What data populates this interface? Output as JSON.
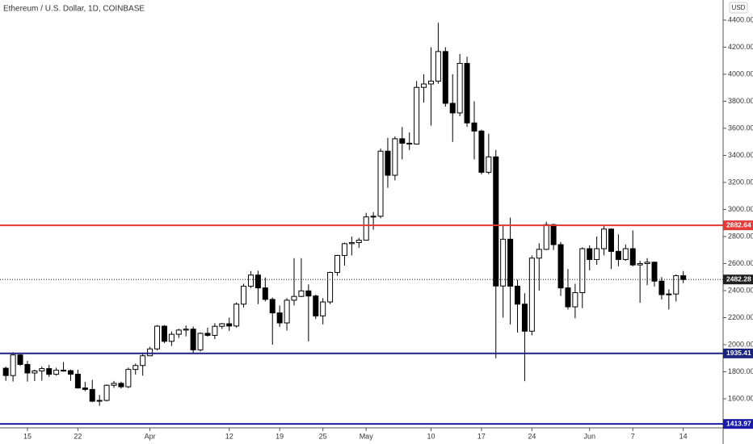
{
  "chart_data": {
    "type": "candlestick",
    "title": "Ethereum / U.S. Dollar, 1D, COINBASE",
    "currency": "USD",
    "categories": [
      null,
      null,
      null,
      "15",
      null,
      null,
      null,
      null,
      null,
      null,
      "22",
      null,
      null,
      null,
      null,
      null,
      null,
      null,
      null,
      null,
      "Apr",
      null,
      null,
      null,
      null,
      null,
      null,
      null,
      null,
      null,
      null,
      "12",
      null,
      null,
      null,
      null,
      null,
      null,
      "19",
      null,
      null,
      null,
      null,
      null,
      "25",
      null,
      null,
      null,
      null,
      null,
      "May",
      null,
      null,
      null,
      null,
      null,
      null,
      null,
      null,
      "10",
      null,
      null,
      null,
      null,
      null,
      null,
      "17",
      null,
      null,
      null,
      null,
      null,
      null,
      "24",
      null,
      null,
      null,
      null,
      null,
      null,
      null,
      "Jun",
      null,
      null,
      null,
      null,
      null,
      "7",
      null,
      null,
      null,
      null,
      null,
      null,
      "14"
    ],
    "open": [
      1826,
      1772,
      1924,
      1854,
      1791,
      1806,
      1823,
      1781,
      1811,
      1808,
      1782,
      1680,
      1669,
      1582,
      1588,
      1700,
      1714,
      1689,
      1817,
      1846,
      1918,
      1969,
      2137,
      2025,
      2077,
      2108,
      2115,
      1962,
      2084,
      2069,
      2136,
      2155,
      2138,
      2300,
      2432,
      2515,
      2420,
      2335,
      2235,
      2161,
      2329,
      2357,
      2398,
      2360,
      2213,
      2316,
      2534,
      2660,
      2747,
      2755,
      2773,
      2945,
      2950,
      3431,
      3253,
      3523,
      3490,
      3484,
      3903,
      3928,
      3949,
      4168,
      3785,
      3714,
      4080,
      3640,
      3580,
      3275,
      3389,
      2434,
      2780,
      2433,
      2300,
      2100,
      2640,
      2705,
      2888,
      2740,
      2420,
      2280,
      2385,
      2710,
      2630,
      2710,
      2855,
      2690,
      2630,
      2710,
      2590,
      2600,
      2610,
      2470,
      2370,
      2375,
      2510
    ],
    "high": [
      1838,
      1944,
      1930,
      1880,
      1815,
      1838,
      1850,
      1830,
      1871,
      1816,
      1815,
      1725,
      1740,
      1628,
      1706,
      1732,
      1726,
      1831,
      1860,
      1941,
      1985,
      2145,
      2145,
      2098,
      2118,
      2142,
      2135,
      2091,
      2126,
      2159,
      2160,
      2200,
      2312,
      2450,
      2545,
      2547,
      2497,
      2349,
      2290,
      2345,
      2640,
      2640,
      2446,
      2370,
      2345,
      2540,
      2665,
      2755,
      2800,
      2790,
      2975,
      2980,
      3450,
      3530,
      3540,
      3610,
      3570,
      3950,
      4000,
      4200,
      4380,
      4200,
      4000,
      4150,
      4130,
      3800,
      3590,
      3560,
      3440,
      2880,
      2940,
      2480,
      2380,
      2660,
      2750,
      2910,
      2895,
      2760,
      2560,
      2450,
      2720,
      2735,
      2800,
      2880,
      2860,
      2815,
      2740,
      2845,
      2620,
      2640,
      2615,
      2500,
      2410,
      2520,
      2545
    ],
    "low": [
      1733,
      1727,
      1843,
      1727,
      1731,
      1734,
      1762,
      1772,
      1800,
      1733,
      1675,
      1656,
      1575,
      1548,
      1581,
      1681,
      1676,
      1679,
      1779,
      1771,
      1915,
      1958,
      2012,
      1990,
      2050,
      2061,
      1932,
      1950,
      2060,
      2041,
      2116,
      2102,
      2126,
      2275,
      2419,
      2300,
      2320,
      2000,
      2131,
      2105,
      2290,
      2351,
      2025,
      2190,
      2150,
      2300,
      2510,
      2585,
      2660,
      2716,
      2770,
      2850,
      2935,
      3160,
      3215,
      3370,
      3440,
      3480,
      3790,
      3620,
      3930,
      3760,
      3500,
      3690,
      3610,
      3370,
      3260,
      3260,
      1900,
      2200,
      2150,
      2090,
      1730,
      2070,
      2400,
      2700,
      2700,
      2360,
      2260,
      2195,
      2270,
      2550,
      2590,
      2660,
      2560,
      2580,
      2620,
      2580,
      2310,
      2440,
      2430,
      2335,
      2260,
      2320,
      2455
    ],
    "close": [
      1772,
      1924,
      1854,
      1791,
      1806,
      1823,
      1781,
      1811,
      1808,
      1782,
      1680,
      1669,
      1582,
      1588,
      1700,
      1714,
      1689,
      1817,
      1846,
      1918,
      1969,
      2137,
      2025,
      2077,
      2108,
      2115,
      1962,
      2084,
      2069,
      2136,
      2155,
      2138,
      2300,
      2432,
      2515,
      2420,
      2335,
      2235,
      2161,
      2329,
      2357,
      2398,
      2360,
      2213,
      2316,
      2534,
      2660,
      2747,
      2755,
      2773,
      2945,
      2950,
      3431,
      3253,
      3523,
      3490,
      3484,
      3903,
      3928,
      3949,
      4168,
      3785,
      3714,
      4080,
      3640,
      3580,
      3275,
      3389,
      2434,
      2780,
      2433,
      2300,
      2100,
      2640,
      2705,
      2888,
      2740,
      2420,
      2280,
      2385,
      2710,
      2630,
      2710,
      2855,
      2690,
      2630,
      2710,
      2590,
      2600,
      2610,
      2470,
      2370,
      2375,
      2510,
      2482
    ],
    "up_color": "#ffffff",
    "down_color": "#000000",
    "ylim": [
      1385,
      4549
    ],
    "yticks": [
      {
        "value": 1600,
        "label": "1600.00"
      },
      {
        "value": 1800,
        "label": "1800.00"
      },
      {
        "value": 2000,
        "label": "2000.00"
      },
      {
        "value": 2200,
        "label": "2200.00"
      },
      {
        "value": 2400,
        "label": "2400.00"
      },
      {
        "value": 2600,
        "label": "2600.00"
      },
      {
        "value": 2800,
        "label": "2800.00"
      },
      {
        "value": 3000,
        "label": "3000.00"
      },
      {
        "value": 3200,
        "label": "3200.00"
      },
      {
        "value": 3400,
        "label": "3400.00"
      },
      {
        "value": 3600,
        "label": "3600.00"
      },
      {
        "value": 3800,
        "label": "3800.00"
      },
      {
        "value": 4000,
        "label": "4000.00"
      },
      {
        "value": 4200,
        "label": "4200.00"
      },
      {
        "value": 4400,
        "label": "4400.00"
      }
    ],
    "hlines": [
      {
        "value": 2882.64,
        "color": "#e53935"
      },
      {
        "value": 1935.41,
        "color": "#1a237e"
      },
      {
        "value": 1413.97,
        "color": "#1a1aa8"
      }
    ],
    "last_price": {
      "value": 2482.28,
      "color": "#202020"
    }
  }
}
